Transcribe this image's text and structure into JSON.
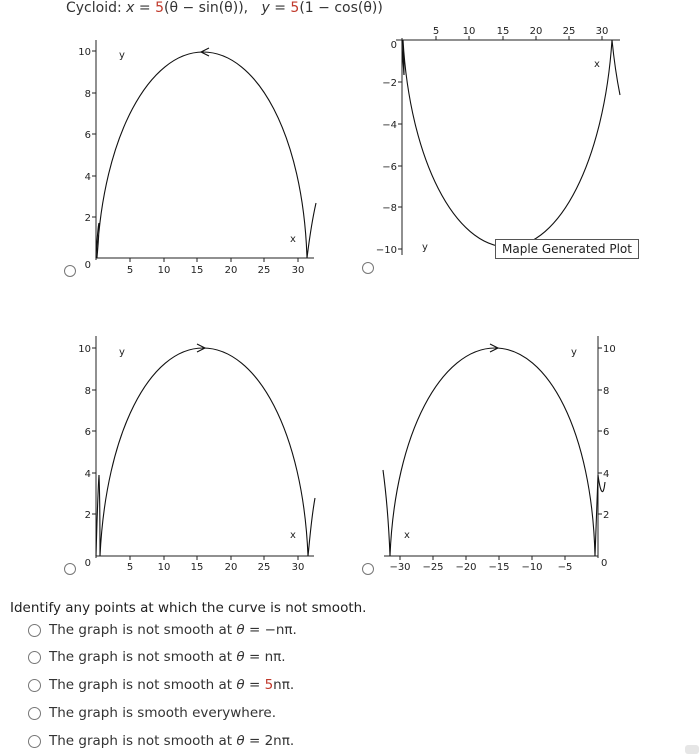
{
  "title": {
    "prefix": "Cycloid: ",
    "x_eq": "x = ",
    "x_coef": "5",
    "x_rest": "(θ − sin(θ)),",
    "y_eq": "y = ",
    "y_coef": "5",
    "y_rest": "(1 − cos(θ))"
  },
  "plots": [
    {
      "id": "top-left",
      "xticks": [
        "5",
        "10",
        "15",
        "20",
        "25",
        "30"
      ],
      "yticks": [
        "10",
        "8",
        "6",
        "4",
        "2",
        "0"
      ],
      "xlabel": "x",
      "ylabel": "y"
    },
    {
      "id": "top-right",
      "xticks": [
        "5",
        "10",
        "15",
        "20",
        "25",
        "30"
      ],
      "yticks": [
        "0",
        "−2",
        "−4",
        "−6",
        "−8",
        "−10"
      ],
      "xlabel": "x",
      "ylabel": "y"
    },
    {
      "id": "bottom-left",
      "xticks": [
        "5",
        "10",
        "15",
        "20",
        "25",
        "30"
      ],
      "yticks": [
        "10",
        "8",
        "6",
        "4",
        "2",
        "0"
      ],
      "xlabel": "x",
      "ylabel": "y"
    },
    {
      "id": "bottom-right",
      "xticks": [
        "−30",
        "−25",
        "−20",
        "−15",
        "−10",
        "−5"
      ],
      "yticks": [
        "10",
        "8",
        "6",
        "4",
        "2",
        "0"
      ],
      "xlabel": "x",
      "ylabel": "y"
    }
  ],
  "tooltip": "Maple Generated Plot",
  "question": "Identify any points at which the curve is not smooth.",
  "options": [
    {
      "pre": "The graph is not smooth at ",
      "theta": "θ = ",
      "coef": "",
      "val": "−nπ."
    },
    {
      "pre": "The graph is not smooth at ",
      "theta": "θ = ",
      "coef": "",
      "val": "nπ."
    },
    {
      "pre": "The graph is not smooth at ",
      "theta": "θ = ",
      "coef": "5",
      "val": "nπ."
    },
    {
      "pre": "The graph is smooth everywhere.",
      "theta": "",
      "coef": "",
      "val": ""
    },
    {
      "pre": "The graph is not smooth at ",
      "theta": "θ = ",
      "coef": "",
      "val": "2nπ."
    }
  ]
}
